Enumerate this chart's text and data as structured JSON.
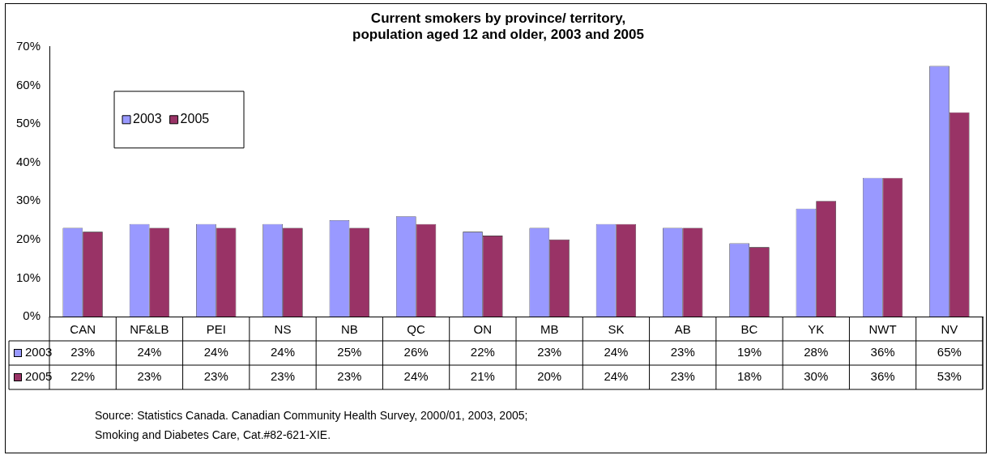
{
  "chart_data": {
    "type": "bar",
    "title": "Current smokers by province/ territory,\npopulation aged 12 and older, 2003 and 2005",
    "categories": [
      "CAN",
      "NF&LB",
      "PEI",
      "NS",
      "NB",
      "QC",
      "ON",
      "MB",
      "SK",
      "AB",
      "BC",
      "YK",
      "NWT",
      "NV"
    ],
    "series": [
      {
        "name": "2003",
        "color": "#9999ff",
        "values": [
          23,
          24,
          24,
          24,
          25,
          26,
          22,
          23,
          24,
          23,
          19,
          28,
          36,
          65
        ],
        "value_labels": [
          "23%",
          "24%",
          "24%",
          "24%",
          "25%",
          "26%",
          "22%",
          "23%",
          "24%",
          "23%",
          "19%",
          "28%",
          "36%",
          "65%"
        ]
      },
      {
        "name": "2005",
        "color": "#993366",
        "values": [
          22,
          23,
          23,
          23,
          23,
          24,
          21,
          20,
          24,
          23,
          18,
          30,
          36,
          53
        ],
        "value_labels": [
          "22%",
          "23%",
          "23%",
          "23%",
          "23%",
          "24%",
          "21%",
          "20%",
          "24%",
          "23%",
          "18%",
          "30%",
          "36%",
          "53%"
        ]
      }
    ],
    "ylim": [
      0,
      70
    ],
    "yticks": [
      {
        "value": 0,
        "label": "0%"
      },
      {
        "value": 10,
        "label": "10%"
      },
      {
        "value": 20,
        "label": "20%"
      },
      {
        "value": 30,
        "label": "30%"
      },
      {
        "value": 40,
        "label": "40%"
      },
      {
        "value": 50,
        "label": "50%"
      },
      {
        "value": 60,
        "label": "60%"
      },
      {
        "value": 70,
        "label": "70%"
      }
    ],
    "grid": false,
    "legend": "top left",
    "annotations": [
      "Source: Statistics Canada. Canadian Community Health Survey, 2000/01, 2003, 2005;",
      "Smoking and Diabetes Care, Cat.#82-621-XIE."
    ]
  }
}
